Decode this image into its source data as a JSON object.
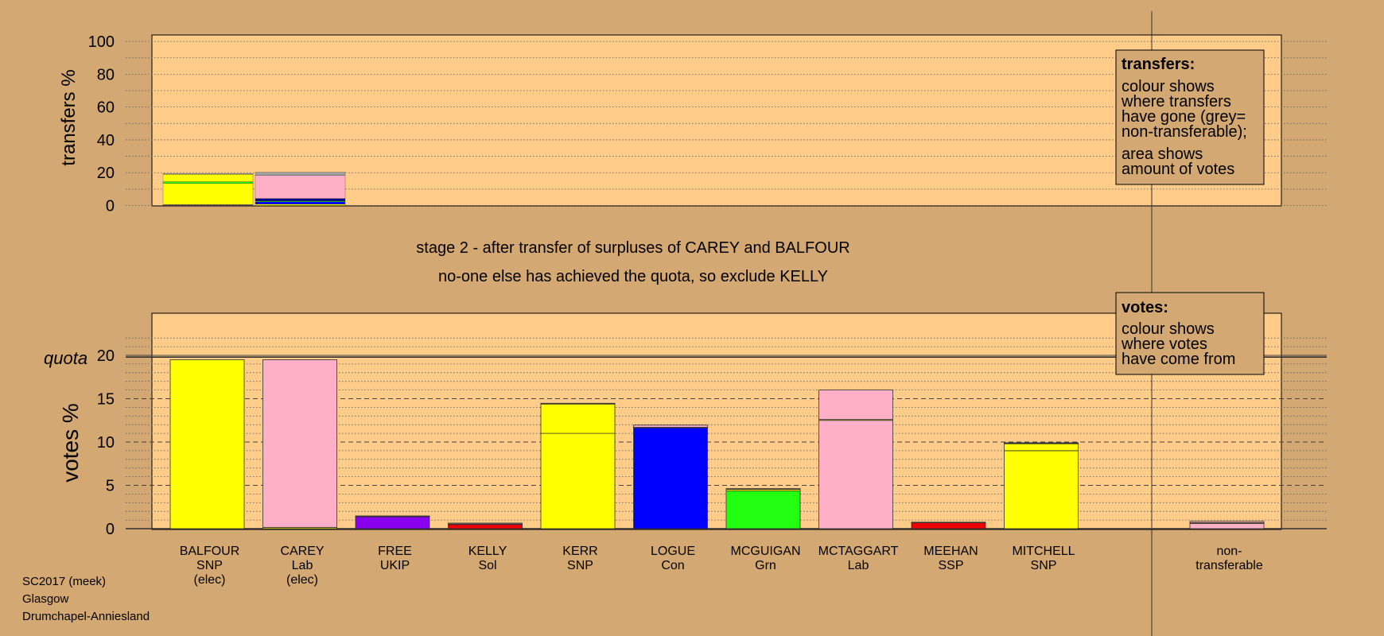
{
  "colors": {
    "background": "#d4a872",
    "panel": "#ffcc8a",
    "yellow": "#ffff00",
    "pink": "#ffb0c8",
    "blue": "#0000ff",
    "green": "#22ff11",
    "purple": "#8800ee",
    "red": "#ee0000",
    "grey": "#a0a0a0",
    "navy": "#000088"
  },
  "info": {
    "line1": "SC2017 (meek)",
    "line2": "Glasgow",
    "line3": "Drumchapel-Anniesland"
  },
  "stage_text": {
    "line1": "stage 2 - after transfer of surpluses of CAREY and BALFOUR",
    "line2": "no-one else has achieved the quota, so exclude KELLY"
  },
  "legends": {
    "transfers": {
      "title": "transfers:",
      "lines": [
        "colour shows",
        "where transfers",
        "have gone (grey=",
        "non-transferable);"
      ],
      "lines2": [
        "area shows",
        "amount of votes"
      ]
    },
    "votes": {
      "title": "votes:",
      "lines": [
        "colour shows",
        "where votes",
        "have come from"
      ]
    }
  },
  "chart_data": [
    {
      "type": "bar",
      "name": "transfers",
      "ylabel": "transfers %",
      "ylim": [
        0,
        100
      ],
      "yticks": [
        0,
        20,
        40,
        60,
        80,
        100
      ],
      "grid": true,
      "bars": [
        {
          "source": "BALFOUR",
          "segments": [
            {
              "to": "CAREY",
              "color": "pink",
              "value": 0.3
            },
            {
              "to": "LOGUE",
              "color": "blue",
              "value": 0.2
            },
            {
              "to": "KERR",
              "color": "yellow",
              "value": 13.0
            },
            {
              "to": "MCGUIGAN",
              "color": "green",
              "value": 1.0
            },
            {
              "to": "MITCHELL",
              "color": "yellow",
              "value": 4.5
            },
            {
              "to": "non-transferable",
              "color": "grey",
              "value": 0.5
            }
          ]
        },
        {
          "source": "CAREY",
          "segments": [
            {
              "to": "BALFOUR",
              "color": "yellow",
              "value": 0.8
            },
            {
              "to": "LOGUE",
              "color": "blue",
              "value": 1.5
            },
            {
              "to": "MCGUIGAN",
              "color": "green",
              "value": 0.5
            },
            {
              "to": "FREE",
              "color": "navy",
              "value": 1.5
            },
            {
              "to": "MCTAGGART",
              "color": "pink",
              "value": 14.0
            },
            {
              "to": "non-transferable",
              "color": "grey",
              "value": 2.0
            }
          ]
        }
      ]
    },
    {
      "type": "bar",
      "name": "votes",
      "ylabel": "votes %",
      "quota_label": "quota",
      "quota": 19.8,
      "ylim": [
        0,
        20
      ],
      "yticks": [
        0,
        5,
        10,
        15,
        20
      ],
      "grid": true,
      "categories": [
        {
          "name": "BALFOUR",
          "party": "SNP",
          "note": "(elec)"
        },
        {
          "name": "CAREY",
          "party": "Lab",
          "note": "(elec)"
        },
        {
          "name": "FREE",
          "party": "UKIP",
          "note": ""
        },
        {
          "name": "KELLY",
          "party": "Sol",
          "note": ""
        },
        {
          "name": "KERR",
          "party": "SNP",
          "note": ""
        },
        {
          "name": "LOGUE",
          "party": "Con",
          "note": ""
        },
        {
          "name": "MCGUIGAN",
          "party": "Grn",
          "note": ""
        },
        {
          "name": "MCTAGGART",
          "party": "Lab",
          "note": ""
        },
        {
          "name": "MEEHAN",
          "party": "SSP",
          "note": ""
        },
        {
          "name": "MITCHELL",
          "party": "SNP",
          "note": ""
        },
        {
          "name": "",
          "party": "",
          "note": ""
        },
        {
          "name": "non-",
          "party": "transferable",
          "note": ""
        }
      ],
      "series": [
        {
          "color": "yellow",
          "values": [
            19.5,
            0.15,
            0,
            0,
            11.0,
            0,
            0,
            0,
            0,
            9.0,
            0,
            0
          ]
        },
        {
          "color": "pink",
          "values": [
            0,
            19.35,
            0,
            0,
            0,
            0,
            0,
            12.5,
            0,
            0,
            0,
            0.6
          ]
        },
        {
          "color": "purple",
          "values": [
            0,
            0,
            1.4,
            0,
            0,
            0,
            0,
            0,
            0,
            0,
            0,
            0
          ]
        },
        {
          "color": "red",
          "values": [
            0,
            0,
            0,
            0.5,
            0,
            0,
            0,
            0,
            0.7,
            0,
            0,
            0
          ]
        },
        {
          "color": "blue",
          "values": [
            0,
            0,
            0,
            0,
            0,
            11.65,
            0,
            0,
            0,
            0,
            0,
            0
          ]
        },
        {
          "color": "green",
          "values": [
            0,
            0,
            0,
            0,
            0,
            0,
            4.35,
            0,
            0,
            0,
            0,
            0
          ]
        },
        {
          "color": "yellow",
          "values": [
            0,
            0,
            0,
            0.05,
            3.4,
            0.05,
            0.2,
            0.1,
            0,
            0.8,
            0,
            0.1
          ]
        },
        {
          "color": "pink",
          "values": [
            0,
            0,
            0.05,
            0.1,
            0.05,
            0.25,
            0.05,
            3.4,
            0.05,
            0.1,
            0,
            0.15
          ]
        },
        {
          "color": "blue",
          "values": [
            0,
            0,
            0.02,
            0,
            0,
            0,
            0,
            0,
            0,
            0,
            0,
            0
          ]
        },
        {
          "color": "green",
          "values": [
            0,
            0,
            0,
            0,
            0.02,
            0,
            0.02,
            0,
            0,
            0.02,
            0,
            0
          ]
        }
      ]
    }
  ]
}
